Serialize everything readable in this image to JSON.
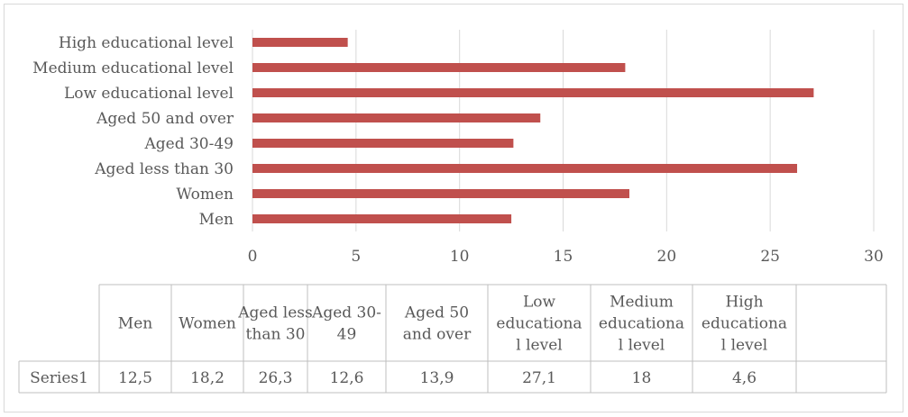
{
  "chart_data": {
    "type": "bar",
    "orientation": "horizontal",
    "categories": [
      "Men",
      "Women",
      "Aged less than 30",
      "Aged 30-49",
      "Aged 50 and over",
      "Low educational level",
      "Medium educational level",
      "High educational level"
    ],
    "series": [
      {
        "name": "Series1",
        "values": [
          12.5,
          18.2,
          26.3,
          12.6,
          13.9,
          27.1,
          18,
          4.6
        ],
        "color": "#c0504d"
      }
    ],
    "xlim": [
      0,
      30
    ],
    "xticks": [
      "0",
      "5",
      "10",
      "15",
      "20",
      "25",
      "30"
    ],
    "grid": true,
    "title": "",
    "xlabel": "",
    "ylabel": "",
    "data_table": {
      "headers": [
        [
          "Men"
        ],
        [
          "Women"
        ],
        [
          "Aged less",
          "than 30"
        ],
        [
          "Aged 30-",
          "49"
        ],
        [
          "Aged 50",
          "and over"
        ],
        [
          "Low",
          "educationa",
          "l level"
        ],
        [
          "Medium",
          "educationa",
          "l level"
        ],
        [
          "High",
          "educationa",
          "l level"
        ]
      ],
      "row_label": "Series1",
      "values": [
        "12,5",
        "18,2",
        "26,3",
        "12,6",
        "13,9",
        "27,1",
        "18",
        "4,6"
      ]
    }
  }
}
